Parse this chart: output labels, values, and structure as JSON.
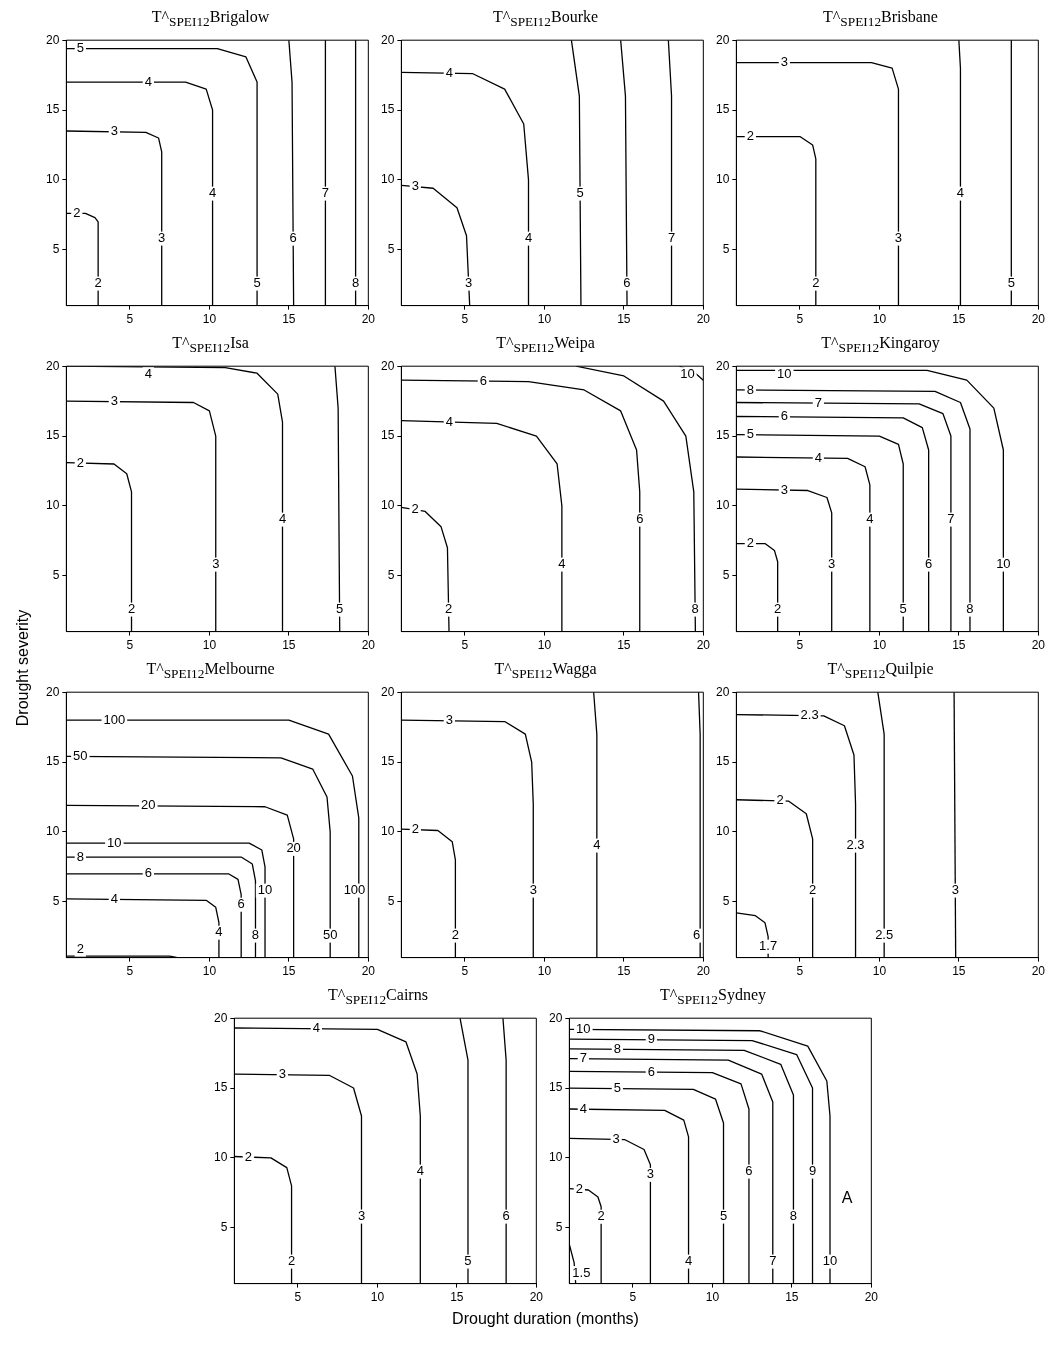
{
  "chart_data": [
    {
      "type": "line",
      "title": "T^$_{SPEI12}$Brigalow",
      "xlim": [
        1,
        20
      ],
      "ylim": [
        1,
        20
      ],
      "xticks": [
        5,
        10,
        15,
        20
      ],
      "yticks": [
        5,
        10,
        15,
        20
      ],
      "legend": false,
      "grid": false,
      "series": [
        {
          "name": "2",
          "color": "#000000",
          "x": [
            1,
            2.2,
            2.8,
            3,
            3
          ],
          "values": [
            7.6,
            7.6,
            7.3,
            7,
            1
          ]
        },
        {
          "name": "3",
          "color": "#000000",
          "x": [
            1,
            6,
            6.8,
            7,
            7
          ],
          "values": [
            13.5,
            13.4,
            13,
            12,
            1
          ]
        },
        {
          "name": "4",
          "color": "#000000",
          "x": [
            1,
            8.5,
            9.8,
            10.2,
            10.2
          ],
          "values": [
            17,
            17,
            16.5,
            15,
            1
          ]
        },
        {
          "name": "5",
          "color": "#000000",
          "x": [
            1,
            10.5,
            12.3,
            13,
            13
          ],
          "values": [
            19.4,
            19.4,
            18.8,
            17,
            1
          ]
        },
        {
          "name": "6",
          "color": "#000000",
          "x": [
            15,
            15.2,
            15.3
          ],
          "values": [
            20,
            17,
            1
          ]
        },
        {
          "name": "7",
          "color": "#000000",
          "x": [
            17.3,
            17.3
          ],
          "values": [
            20,
            1
          ]
        },
        {
          "name": "8",
          "color": "#000000",
          "x": [
            19.2,
            19.2
          ],
          "values": [
            20,
            1
          ]
        }
      ]
    },
    {
      "type": "line",
      "title": "T^$_{SPEI12}$Bourke",
      "xlim": [
        1,
        20
      ],
      "ylim": [
        1,
        20
      ],
      "xticks": [
        5,
        10,
        15,
        20
      ],
      "yticks": [
        5,
        10,
        15,
        20
      ],
      "legend": false,
      "grid": false,
      "series": [
        {
          "name": "3",
          "color": "#000000",
          "x": [
            1,
            3,
            4.5,
            5.1,
            5.3
          ],
          "values": [
            9.6,
            9.4,
            8,
            6,
            1
          ]
        },
        {
          "name": "4",
          "color": "#000000",
          "x": [
            1,
            5.5,
            7.5,
            8.7,
            9,
            9
          ],
          "values": [
            17.7,
            17.6,
            16.5,
            14,
            10,
            1
          ]
        },
        {
          "name": "5",
          "color": "#000000",
          "x": [
            11.7,
            12.2,
            12.3
          ],
          "values": [
            20,
            16,
            1
          ]
        },
        {
          "name": "6",
          "color": "#000000",
          "x": [
            14.8,
            15.1,
            15.2
          ],
          "values": [
            20,
            16,
            1
          ]
        },
        {
          "name": "7",
          "color": "#000000",
          "x": [
            17.8,
            18,
            18
          ],
          "values": [
            20,
            16,
            1
          ]
        }
      ]
    },
    {
      "type": "line",
      "title": "T^$_{SPEI12}$Brisbane",
      "xlim": [
        1,
        20
      ],
      "ylim": [
        1,
        20
      ],
      "xticks": [
        5,
        10,
        15,
        20
      ],
      "yticks": [
        5,
        10,
        15,
        20
      ],
      "legend": false,
      "grid": false,
      "series": [
        {
          "name": "2",
          "color": "#000000",
          "x": [
            1,
            5,
            5.8,
            6,
            6
          ],
          "values": [
            13.1,
            13.1,
            12.5,
            11.5,
            1
          ]
        },
        {
          "name": "3",
          "color": "#000000",
          "x": [
            1,
            9.5,
            10.8,
            11.2,
            11.2
          ],
          "values": [
            18.4,
            18.4,
            18,
            16.5,
            1
          ]
        },
        {
          "name": "4",
          "color": "#000000",
          "x": [
            15,
            15.1,
            15.1
          ],
          "values": [
            20,
            18,
            1
          ]
        },
        {
          "name": "5",
          "color": "#000000",
          "x": [
            18.3,
            18.3
          ],
          "values": [
            20,
            1
          ]
        }
      ]
    },
    {
      "type": "line",
      "title": "T^$_{SPEI12}$Isa",
      "ylabel": "Drought severity",
      "xlim": [
        1,
        20
      ],
      "ylim": [
        1,
        20
      ],
      "xticks": [
        5,
        10,
        15,
        20
      ],
      "yticks": [
        5,
        10,
        15,
        20
      ],
      "legend": false,
      "grid": false,
      "series": [
        {
          "name": "2",
          "color": "#000000",
          "x": [
            1,
            4,
            4.8,
            5.1,
            5.1
          ],
          "values": [
            13.1,
            13,
            12.3,
            11,
            1
          ]
        },
        {
          "name": "3",
          "color": "#000000",
          "x": [
            1,
            9,
            10,
            10.4,
            10.4
          ],
          "values": [
            17.5,
            17.4,
            16.8,
            15,
            1
          ]
        },
        {
          "name": "4",
          "color": "#000000",
          "x": [
            1,
            11,
            13,
            14.3,
            14.6,
            14.6
          ],
          "values": [
            20,
            19.9,
            19.5,
            18,
            16,
            1
          ]
        },
        {
          "name": "5",
          "color": "#000000",
          "x": [
            17.9,
            18.1,
            18.2
          ],
          "values": [
            20,
            17,
            1
          ]
        }
      ]
    },
    {
      "type": "line",
      "title": "T^$_{SPEI12}$Weipa",
      "xlim": [
        1,
        20
      ],
      "ylim": [
        1,
        20
      ],
      "xticks": [
        5,
        10,
        15,
        20
      ],
      "yticks": [
        5,
        10,
        15,
        20
      ],
      "legend": false,
      "grid": false,
      "series": [
        {
          "name": "2",
          "color": "#000000",
          "x": [
            1,
            2.5,
            3.5,
            3.9,
            4
          ],
          "values": [
            9.9,
            9.6,
            8.5,
            7,
            1
          ]
        },
        {
          "name": "4",
          "color": "#000000",
          "x": [
            1,
            7,
            9.5,
            10.8,
            11.1,
            11.1
          ],
          "values": [
            16.1,
            15.9,
            15,
            13,
            10,
            1
          ]
        },
        {
          "name": "6",
          "color": "#000000",
          "x": [
            1,
            9,
            12.5,
            14.8,
            15.8,
            16,
            16
          ],
          "values": [
            19,
            18.9,
            18.3,
            16.8,
            14,
            11,
            1
          ]
        },
        {
          "name": "8",
          "color": "#000000",
          "x": [
            12,
            15,
            17.5,
            18.9,
            19.4,
            19.5
          ],
          "values": [
            20,
            19.3,
            17.5,
            15,
            11,
            1
          ]
        },
        {
          "name": "10",
          "color": "#000000",
          "x": [
            18.5,
            19.5,
            20
          ],
          "values": [
            20,
            19.5,
            19
          ]
        }
      ]
    },
    {
      "type": "line",
      "title": "T^$_{SPEI12}$Kingaroy",
      "xlim": [
        1,
        20
      ],
      "ylim": [
        1,
        20
      ],
      "xticks": [
        5,
        10,
        15,
        20
      ],
      "yticks": [
        5,
        10,
        15,
        20
      ],
      "legend": false,
      "grid": false,
      "series": [
        {
          "name": "2",
          "color": "#000000",
          "x": [
            1,
            2.8,
            3.4,
            3.6,
            3.6
          ],
          "values": [
            7.3,
            7.3,
            6.8,
            6,
            1
          ]
        },
        {
          "name": "3",
          "color": "#000000",
          "x": [
            1,
            5.5,
            6.7,
            7,
            7
          ],
          "values": [
            11.2,
            11.1,
            10.6,
            9.5,
            1
          ]
        },
        {
          "name": "4",
          "color": "#000000",
          "x": [
            1,
            8,
            9.1,
            9.4,
            9.4
          ],
          "values": [
            13.5,
            13.4,
            12.8,
            11.5,
            1
          ]
        },
        {
          "name": "5",
          "color": "#000000",
          "x": [
            1,
            10,
            11.2,
            11.5,
            11.5
          ],
          "values": [
            15.1,
            15,
            14.4,
            13,
            1
          ]
        },
        {
          "name": "6",
          "color": "#000000",
          "x": [
            1,
            11.5,
            12.7,
            13.1,
            13.1
          ],
          "values": [
            16.4,
            16.3,
            15.6,
            14,
            1
          ]
        },
        {
          "name": "7",
          "color": "#000000",
          "x": [
            1,
            12.5,
            14,
            14.5,
            14.5
          ],
          "values": [
            17.4,
            17.3,
            16.6,
            15,
            1
          ]
        },
        {
          "name": "8",
          "color": "#000000",
          "x": [
            1,
            13.5,
            15.1,
            15.7,
            15.7
          ],
          "values": [
            18.3,
            18.2,
            17.4,
            15.5,
            1
          ]
        },
        {
          "name": "10",
          "color": "#000000",
          "x": [
            1,
            13,
            15.5,
            17.2,
            17.8,
            17.8
          ],
          "values": [
            19.7,
            19.7,
            19,
            17,
            14,
            1
          ]
        }
      ]
    },
    {
      "type": "line",
      "title": "T^$_{SPEI12}$Melbourne",
      "xlim": [
        1,
        20
      ],
      "ylim": [
        1,
        20
      ],
      "xticks": [
        5,
        10,
        15,
        20
      ],
      "yticks": [
        5,
        10,
        15,
        20
      ],
      "legend": false,
      "grid": false,
      "series": [
        {
          "name": "2",
          "color": "#000000",
          "x": [
            1,
            7.5,
            8
          ],
          "values": [
            1.1,
            1.1,
            1
          ]
        },
        {
          "name": "4",
          "color": "#000000",
          "x": [
            1,
            9.8,
            10.4,
            10.6,
            10.6
          ],
          "values": [
            5.2,
            5.1,
            4.6,
            3.5,
            1
          ]
        },
        {
          "name": "6",
          "color": "#000000",
          "x": [
            1,
            11.2,
            11.8,
            12,
            12
          ],
          "values": [
            7,
            7,
            6.6,
            5.5,
            1
          ]
        },
        {
          "name": "8",
          "color": "#000000",
          "x": [
            1,
            12,
            12.7,
            12.9,
            12.9
          ],
          "values": [
            8.2,
            8.2,
            7.7,
            6.5,
            1
          ]
        },
        {
          "name": "10",
          "color": "#000000",
          "x": [
            1,
            12.5,
            13.3,
            13.5,
            13.5
          ],
          "values": [
            9.2,
            9.2,
            8.7,
            7.5,
            1
          ]
        },
        {
          "name": "20",
          "color": "#000000",
          "x": [
            1,
            13.5,
            14.9,
            15.3,
            15.3
          ],
          "values": [
            11.9,
            11.8,
            11.2,
            9.5,
            1
          ]
        },
        {
          "name": "50",
          "color": "#000000",
          "x": [
            1,
            14.5,
            16.5,
            17.4,
            17.6,
            17.6
          ],
          "values": [
            15.4,
            15.3,
            14.5,
            12.5,
            10,
            1
          ]
        },
        {
          "name": "100",
          "color": "#000000",
          "x": [
            1,
            15,
            17.5,
            19,
            19.4,
            19.4
          ],
          "values": [
            18,
            18,
            17,
            14,
            11,
            1
          ]
        }
      ]
    },
    {
      "type": "line",
      "title": "T^$_{SPEI12}$Wagga",
      "xlim": [
        1,
        20
      ],
      "ylim": [
        1,
        20
      ],
      "xticks": [
        5,
        10,
        15,
        20
      ],
      "yticks": [
        5,
        10,
        15,
        20
      ],
      "legend": false,
      "grid": false,
      "series": [
        {
          "name": "2",
          "color": "#000000",
          "x": [
            1,
            3.3,
            4.2,
            4.4,
            4.4
          ],
          "values": [
            10.2,
            10.1,
            9.3,
            8,
            1
          ]
        },
        {
          "name": "3",
          "color": "#000000",
          "x": [
            1,
            7.5,
            8.8,
            9.2,
            9.3,
            9.3
          ],
          "values": [
            18,
            17.9,
            17,
            15,
            12,
            1
          ]
        },
        {
          "name": "4",
          "color": "#000000",
          "x": [
            13.1,
            13.3,
            13.3
          ],
          "values": [
            20,
            17,
            1
          ]
        },
        {
          "name": "6",
          "color": "#000000",
          "x": [
            19.7,
            19.8,
            19.8
          ],
          "values": [
            20,
            17,
            1
          ]
        }
      ]
    },
    {
      "type": "line",
      "title": "T^$_{SPEI12}$Quilpie",
      "xlim": [
        1,
        20
      ],
      "ylim": [
        1,
        20
      ],
      "xticks": [
        5,
        10,
        15,
        20
      ],
      "yticks": [
        5,
        10,
        15,
        20
      ],
      "legend": false,
      "grid": false,
      "series": [
        {
          "name": "1.7",
          "color": "#000000",
          "x": [
            1,
            2.2,
            2.8,
            3,
            3
          ],
          "values": [
            4.2,
            4,
            3.5,
            2.5,
            1
          ]
        },
        {
          "name": "2",
          "color": "#000000",
          "x": [
            1,
            4.3,
            5.4,
            5.8,
            5.8
          ],
          "values": [
            12.3,
            12.2,
            11.3,
            9.5,
            1
          ]
        },
        {
          "name": "2.3",
          "color": "#000000",
          "x": [
            1,
            6.5,
            7.8,
            8.4,
            8.5,
            8.5
          ],
          "values": [
            18.4,
            18.3,
            17.6,
            15.5,
            12,
            1
          ]
        },
        {
          "name": "2.5",
          "color": "#000000",
          "x": [
            9.9,
            10.3,
            10.3
          ],
          "values": [
            20,
            17,
            1
          ]
        },
        {
          "name": "3",
          "color": "#000000",
          "x": [
            14.7,
            14.8
          ],
          "values": [
            20,
            1
          ]
        }
      ]
    },
    {
      "type": "line",
      "title": "T^$_{SPEI12}$Cairns",
      "xlabel": "Drought duration (months)",
      "xlim": [
        1,
        20
      ],
      "ylim": [
        1,
        20
      ],
      "xticks": [
        5,
        10,
        15,
        20
      ],
      "yticks": [
        5,
        10,
        15,
        20
      ],
      "legend": false,
      "grid": false,
      "series": [
        {
          "name": "2",
          "color": "#000000",
          "x": [
            1,
            3.3,
            4.3,
            4.6,
            4.6
          ],
          "values": [
            10.1,
            10,
            9.3,
            8,
            1
          ]
        },
        {
          "name": "3",
          "color": "#000000",
          "x": [
            1,
            7,
            8.5,
            9,
            9
          ],
          "values": [
            16,
            15.9,
            15,
            13,
            1
          ]
        },
        {
          "name": "4",
          "color": "#000000",
          "x": [
            1,
            10,
            11.8,
            12.5,
            12.7,
            12.7
          ],
          "values": [
            19.3,
            19.2,
            18.3,
            16,
            13,
            1
          ]
        },
        {
          "name": "5",
          "color": "#000000",
          "x": [
            15.2,
            15.7,
            15.7
          ],
          "values": [
            20,
            17,
            1
          ]
        },
        {
          "name": "6",
          "color": "#000000",
          "x": [
            17.9,
            18.1,
            18.1
          ],
          "values": [
            20,
            17,
            1
          ]
        }
      ]
    },
    {
      "type": "line",
      "title": "T^$_{SPEI12}$Sydney",
      "annotations": [
        "A"
      ],
      "xlim": [
        1,
        20
      ],
      "ylim": [
        1,
        20
      ],
      "xticks": [
        5,
        10,
        15,
        20
      ],
      "yticks": [
        5,
        10,
        15,
        20
      ],
      "legend": false,
      "grid": false,
      "series": [
        {
          "name": "1.5",
          "color": "#000000",
          "x": [
            1,
            1.3,
            1.4
          ],
          "values": [
            3.8,
            2.5,
            1
          ]
        },
        {
          "name": "2",
          "color": "#000000",
          "x": [
            1,
            2.2,
            2.8,
            3,
            3
          ],
          "values": [
            7.8,
            7.7,
            7.2,
            6.5,
            1
          ]
        },
        {
          "name": "3",
          "color": "#000000",
          "x": [
            1,
            4.5,
            5.7,
            6.1,
            6.1
          ],
          "values": [
            11.4,
            11.3,
            10.6,
            9.5,
            1
          ]
        },
        {
          "name": "4",
          "color": "#000000",
          "x": [
            1,
            7,
            8.2,
            8.5,
            8.5
          ],
          "values": [
            13.5,
            13.4,
            12.7,
            11.5,
            1
          ]
        },
        {
          "name": "5",
          "color": "#000000",
          "x": [
            1,
            8.8,
            10.2,
            10.7,
            10.7
          ],
          "values": [
            15,
            14.9,
            14.2,
            12.5,
            1
          ]
        },
        {
          "name": "6",
          "color": "#000000",
          "x": [
            1,
            10,
            11.8,
            12.3,
            12.3
          ],
          "values": [
            16.2,
            16.1,
            15.3,
            13.5,
            1
          ]
        },
        {
          "name": "7",
          "color": "#000000",
          "x": [
            1,
            11,
            13.1,
            13.8,
            13.8
          ],
          "values": [
            17.1,
            17,
            16,
            14,
            1
          ]
        },
        {
          "name": "8",
          "color": "#000000",
          "x": [
            1,
            12,
            14.3,
            15.1,
            15.1
          ],
          "values": [
            17.8,
            17.7,
            16.7,
            14.5,
            1
          ]
        },
        {
          "name": "9",
          "color": "#000000",
          "x": [
            1,
            12.5,
            15.3,
            16.3,
            16.3
          ],
          "values": [
            18.5,
            18.4,
            17.4,
            15,
            1
          ]
        },
        {
          "name": "10",
          "color": "#000000",
          "x": [
            1,
            13,
            16,
            17.2,
            17.4,
            17.4
          ],
          "values": [
            19.2,
            19.1,
            18,
            15.5,
            13,
            1
          ]
        }
      ]
    }
  ]
}
